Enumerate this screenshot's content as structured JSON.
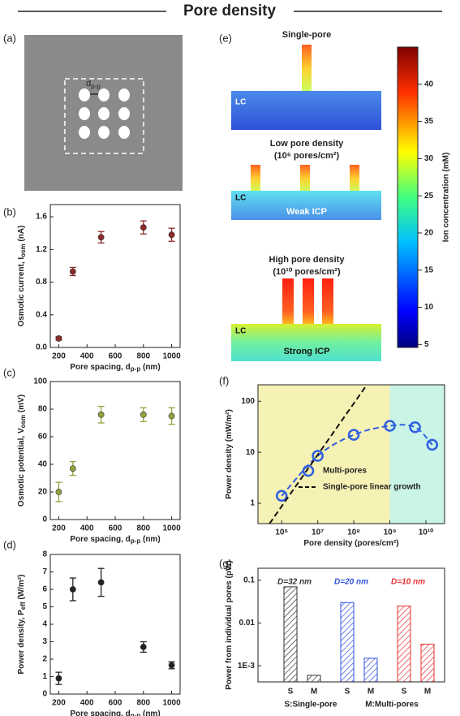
{
  "title": "Pore density",
  "diagram_a": {
    "panel_label": "(a)",
    "spacing_label": "d",
    "spacing_sub": "p-p"
  },
  "diagram_e": {
    "panel_label": "(e)",
    "single": {
      "title": "Single-pore",
      "region": "LC"
    },
    "low": {
      "title": "Low pore density",
      "subtitle": "(10⁶ pores/cm²)",
      "region": "LC",
      "note": "Weak ICP"
    },
    "high": {
      "title": "High pore density",
      "subtitle": "(10¹⁰ pores/cm²)",
      "region": "LC",
      "note": "Strong ICP"
    },
    "colorbar": {
      "label": "Ion concentration (mM)",
      "lim": [
        4.6,
        45
      ],
      "ticks": [
        5,
        10,
        15,
        20,
        25,
        30,
        35,
        40
      ]
    }
  },
  "chart_data": [
    {
      "type": "scatter",
      "panel_label": "(b)",
      "color": "#8b2a2a",
      "ylabel": [
        {
          "text": "Osmotic current, I"
        },
        {
          "text": "osm",
          "sub": true
        },
        {
          "text": " (nA)"
        }
      ],
      "xlabel": [
        {
          "text": "Pore spacing, d"
        },
        {
          "text": "p-p",
          "sub": true
        },
        {
          "text": " (nm)"
        }
      ],
      "x": [
        200,
        300,
        500,
        800,
        1000
      ],
      "values": [
        0.11,
        0.93,
        1.35,
        1.47,
        1.38
      ],
      "errors": [
        0.02,
        0.05,
        0.07,
        0.08,
        0.08
      ],
      "xlim": [
        140,
        1060
      ],
      "xticks": [
        200,
        400,
        600,
        800,
        1000
      ],
      "ylim": [
        0,
        1.75
      ],
      "yticks": [
        {
          "value": 0,
          "label": "0.0"
        },
        {
          "value": 0.4,
          "label": "0.4"
        },
        {
          "value": 0.8,
          "label": "0.8"
        },
        {
          "value": 1.2,
          "label": "1.2"
        },
        {
          "value": 1.6,
          "label": "1.6"
        }
      ]
    },
    {
      "type": "scatter",
      "panel_label": "(c)",
      "color": "#8ea33e",
      "ylabel": [
        {
          "text": "Osmotic potential, V"
        },
        {
          "text": "osm",
          "sub": true
        },
        {
          "text": " (mV)"
        }
      ],
      "xlabel": [
        {
          "text": "Pore spacing, d"
        },
        {
          "text": "p-p",
          "sub": true
        },
        {
          "text": " (nm)"
        }
      ],
      "x": [
        200,
        300,
        500,
        800,
        1000
      ],
      "values": [
        20,
        37,
        76,
        76,
        75
      ],
      "errors": [
        7,
        5,
        6,
        5,
        6
      ],
      "xlim": [
        140,
        1060
      ],
      "xticks": [
        200,
        400,
        600,
        800,
        1000
      ],
      "ylim": [
        0,
        100
      ],
      "yticks": [
        0,
        20,
        40,
        60,
        80,
        100
      ]
    },
    {
      "type": "scatter",
      "panel_label": "(d)",
      "color": "#222222",
      "ylabel": [
        {
          "text": "Power density, P"
        },
        {
          "text": "eff",
          "sub": true
        },
        {
          "text": " (W/m²)"
        }
      ],
      "xlabel": [
        {
          "text": "Pore spacing, d"
        },
        {
          "text": "p-p",
          "sub": true
        },
        {
          "text": " (nm)"
        }
      ],
      "x": [
        200,
        300,
        500,
        800,
        1000
      ],
      "values": [
        0.9,
        6.0,
        6.4,
        2.7,
        1.65
      ],
      "errors": [
        0.35,
        0.65,
        0.8,
        0.3,
        0.2
      ],
      "xlim": [
        140,
        1060
      ],
      "xticks": [
        200,
        400,
        600,
        800,
        1000
      ],
      "ylim": [
        0,
        8
      ],
      "yticks": [
        0,
        1,
        2,
        3,
        4,
        5,
        6,
        7,
        8
      ]
    },
    {
      "type": "line",
      "panel_label": "(f)",
      "log_x": true,
      "log_y": true,
      "legend": "lower right",
      "ylabel": [
        {
          "text": "Power density (mW/m²)"
        }
      ],
      "xlabel": [
        {
          "text": "Pore density (pores/cm²)"
        }
      ],
      "regions": [
        {
          "to": 1000000000,
          "color": "#f6f1b4"
        },
        {
          "from": 1000000000,
          "color": "#c9f4e6"
        }
      ],
      "xlim": [
        220000,
        33000000000
      ],
      "ylim": [
        0.4,
        210
      ],
      "xticks": [
        {
          "value": 1000000,
          "label": "10⁶"
        },
        {
          "value": 10000000,
          "label": "10⁷"
        },
        {
          "value": 100000000,
          "label": "10⁸"
        },
        {
          "value": 1000000000,
          "label": "10⁹"
        },
        {
          "value": 10000000000,
          "label": "10¹⁰"
        }
      ],
      "yticks": [
        1,
        10,
        100
      ],
      "series": [
        {
          "name": "Multi-pores",
          "color": "#2f5fe0",
          "marker": "circle",
          "dash": true,
          "x": [
            1000000,
            10000000,
            100000000,
            1000000000,
            5000000000,
            15000000000
          ],
          "values": [
            1.4,
            8.5,
            22,
            33,
            31,
            14
          ]
        },
        {
          "name": "Single-pore linear growth",
          "color": "#111111",
          "marker": "none",
          "dash": true,
          "x": [
            460000,
            230000000
          ],
          "values": [
            0.4,
            210
          ]
        }
      ]
    },
    {
      "type": "bar",
      "panel_label": "(g)",
      "log_y": true,
      "ylabel": [
        {
          "text": "Power from individual pores (pW)"
        }
      ],
      "groups": [
        {
          "label": "D=32 nm",
          "color": "#333333"
        },
        {
          "label": "D=20 nm",
          "color": "#3050e0"
        },
        {
          "label": "D=10 nm",
          "color": "#e83030"
        }
      ],
      "categories": [
        "S",
        "M",
        "S",
        "M",
        "S",
        "M"
      ],
      "values": [
        0.07,
        0.0006,
        0.03,
        0.0015,
        0.025,
        0.0032
      ],
      "ylim": [
        0.00042,
        0.19
      ],
      "yticks": [
        {
          "value": 0.001,
          "label": "1E-3"
        },
        0.01,
        0.1
      ],
      "footnotes": [
        "S:Single-pore",
        "M:Multi-pores"
      ]
    }
  ]
}
